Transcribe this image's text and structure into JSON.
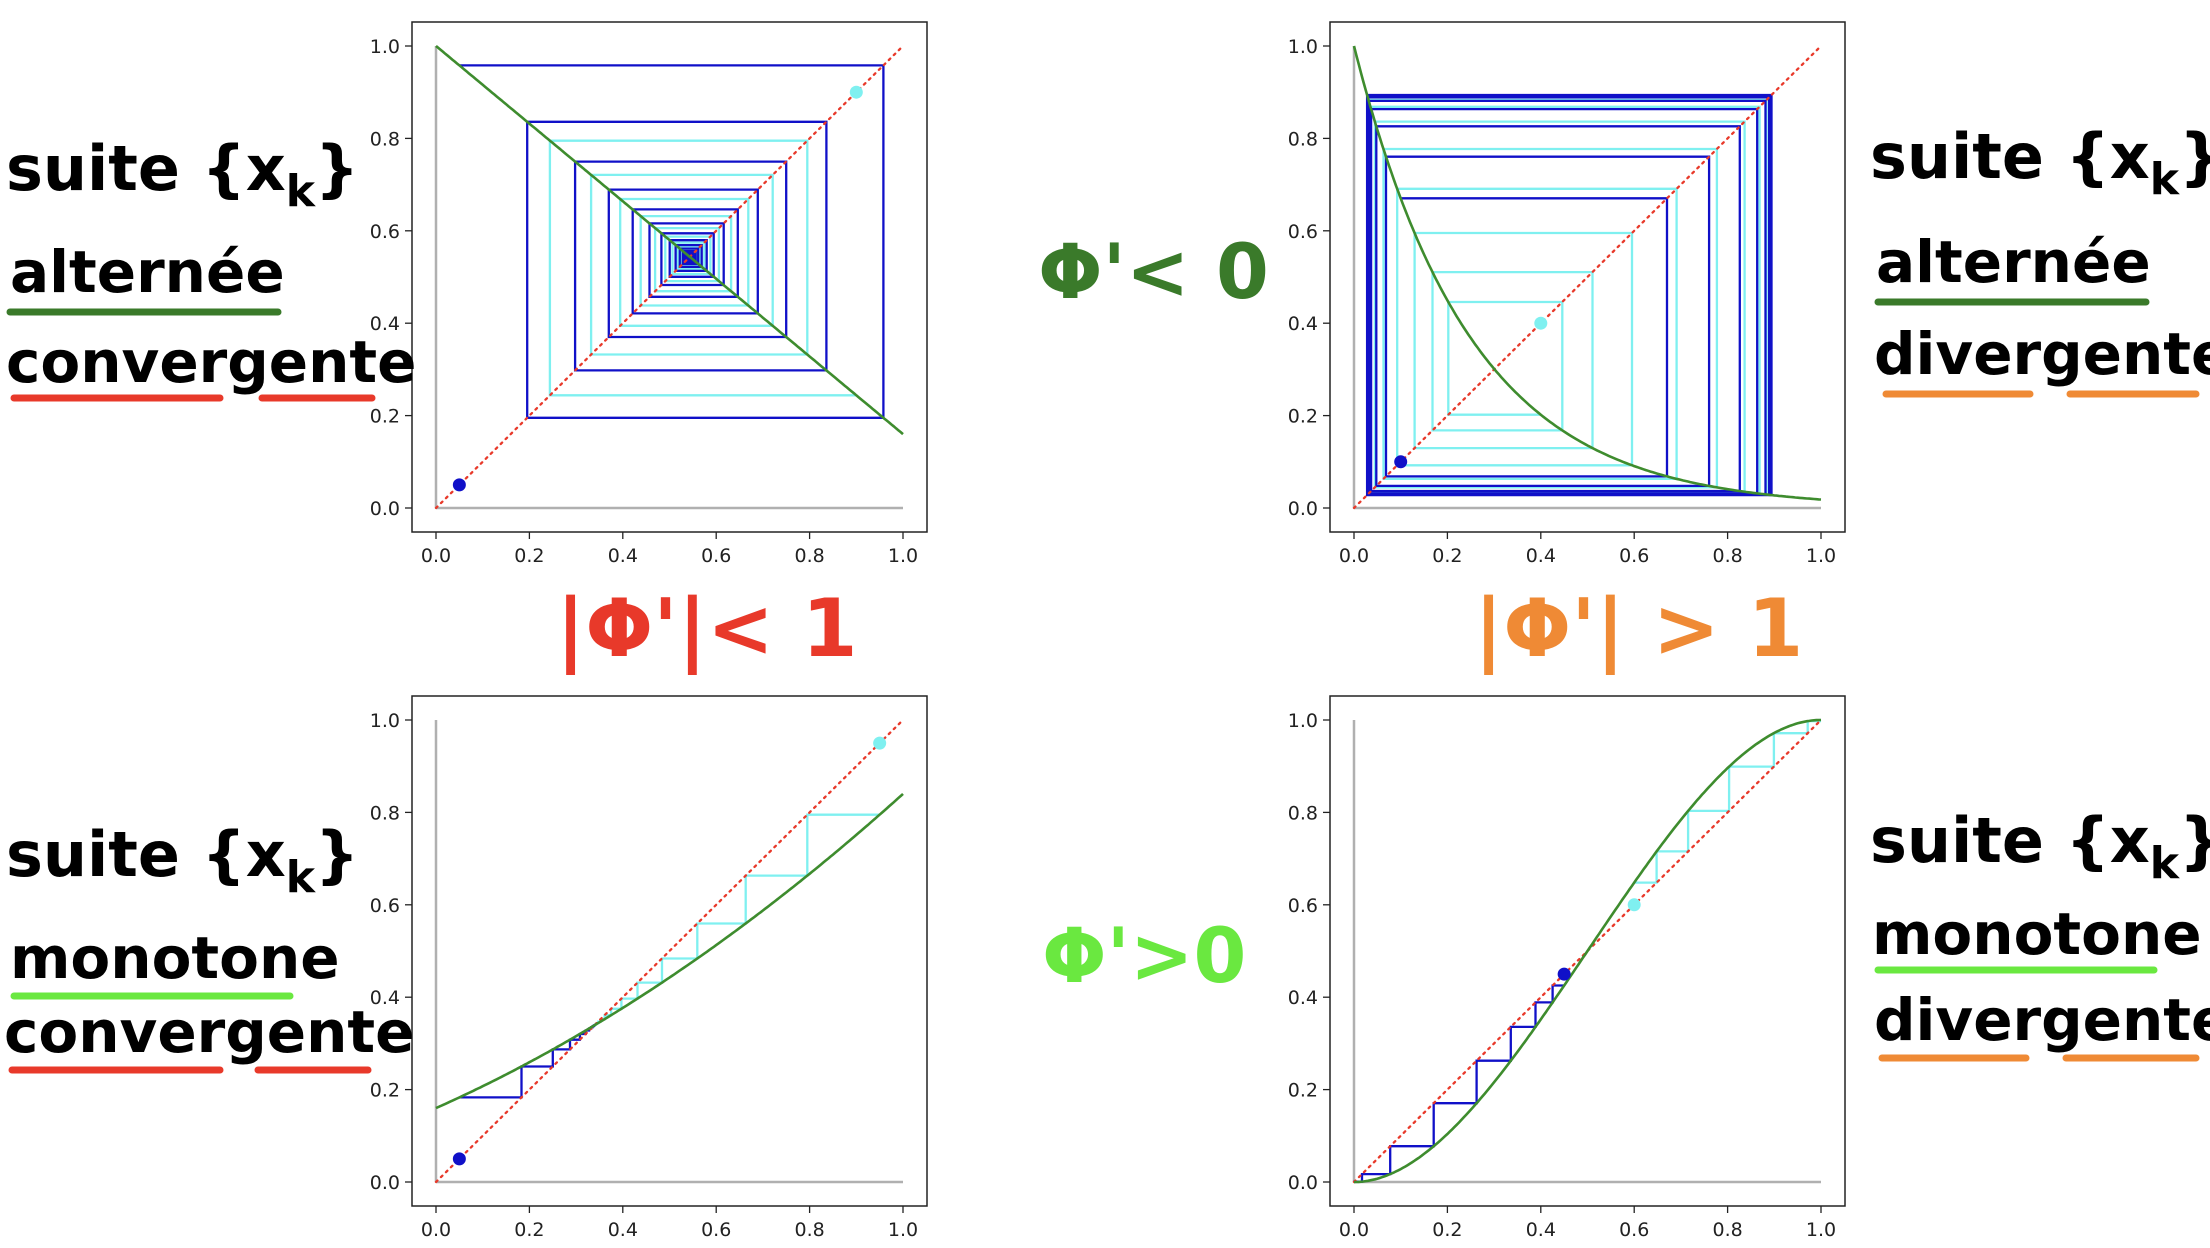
{
  "labels": {
    "tl": [
      "suite {x",
      "k",
      "}",
      "alternée",
      "convergente"
    ],
    "tr": [
      "suite {x",
      "k",
      "}",
      "alternée",
      "divergente"
    ],
    "bl": [
      "suite {x",
      "k",
      "}",
      "monotone",
      "convergente"
    ],
    "br": [
      "suite {x",
      "k",
      "}",
      "monotone",
      "divergente"
    ],
    "mid_top": "Φ'< 0",
    "mid_bottom": "Φ'>0",
    "cond_left": "|Φ'|< 1",
    "cond_right": "|Φ'| > 1"
  },
  "colors": {
    "green_dark": "#3a7a2a",
    "green_light": "#6ae840",
    "red": "#e8392a",
    "orange": "#ef8a35",
    "curve": "#3e8c2e",
    "diag": "#e8392a",
    "cobweb_a": "#1010c8",
    "cobweb_b": "#7ff0f0",
    "axis_ref": "#b0b0b0"
  },
  "chart_data": [
    {
      "id": "top-left",
      "type": "line",
      "function": "phi(x) = 1 - 0.84x",
      "xlim": [
        0,
        1
      ],
      "ylim": [
        0,
        1
      ],
      "xticks": [
        "0.0",
        "0.2",
        "0.4",
        "0.6",
        "0.8",
        "1.0"
      ],
      "yticks": [
        "0.0",
        "0.2",
        "0.4",
        "0.6",
        "0.8",
        "1.0"
      ],
      "grid": false,
      "starts": [
        {
          "x0": 0.05,
          "color": "cobweb_a",
          "iterations": 28
        },
        {
          "x0": 0.9,
          "color": "cobweb_b",
          "iterations": 28
        }
      ]
    },
    {
      "id": "top-right",
      "type": "line",
      "function": "phi(x) = exp(-4x)",
      "xlim": [
        0,
        1
      ],
      "ylim": [
        0,
        1
      ],
      "xticks": [
        "0.0",
        "0.2",
        "0.4",
        "0.6",
        "0.8",
        "1.0"
      ],
      "yticks": [
        "0.0",
        "0.2",
        "0.4",
        "0.6",
        "0.8",
        "1.0"
      ],
      "grid": false,
      "starts": [
        {
          "x0": 0.1,
          "color": "cobweb_a",
          "iterations": 20
        },
        {
          "x0": 0.4,
          "color": "cobweb_b",
          "iterations": 20
        }
      ]
    },
    {
      "id": "bottom-left",
      "type": "line",
      "function": "phi(x) = 0.16 + 0.45x + 0.23x^2",
      "xlim": [
        0,
        1
      ],
      "ylim": [
        0,
        1
      ],
      "xticks": [
        "0.0",
        "0.2",
        "0.4",
        "0.6",
        "0.8",
        "1.0"
      ],
      "yticks": [
        "0.0",
        "0.2",
        "0.4",
        "0.6",
        "0.8",
        "1.0"
      ],
      "grid": false,
      "starts": [
        {
          "x0": 0.05,
          "color": "cobweb_a",
          "iterations": 25
        },
        {
          "x0": 0.95,
          "color": "cobweb_b",
          "iterations": 25
        }
      ]
    },
    {
      "id": "bottom-right",
      "type": "line",
      "function": "phi(x) = 3x^2 - 2x^3",
      "xlim": [
        0,
        1
      ],
      "ylim": [
        0,
        1
      ],
      "xticks": [
        "0.0",
        "0.2",
        "0.4",
        "0.6",
        "0.8",
        "1.0"
      ],
      "yticks": [
        "0.0",
        "0.2",
        "0.4",
        "0.6",
        "0.8",
        "1.0"
      ],
      "grid": false,
      "starts": [
        {
          "x0": 0.45,
          "color": "cobweb_a",
          "iterations": 12
        },
        {
          "x0": 0.6,
          "color": "cobweb_b",
          "iterations": 12
        }
      ]
    }
  ]
}
